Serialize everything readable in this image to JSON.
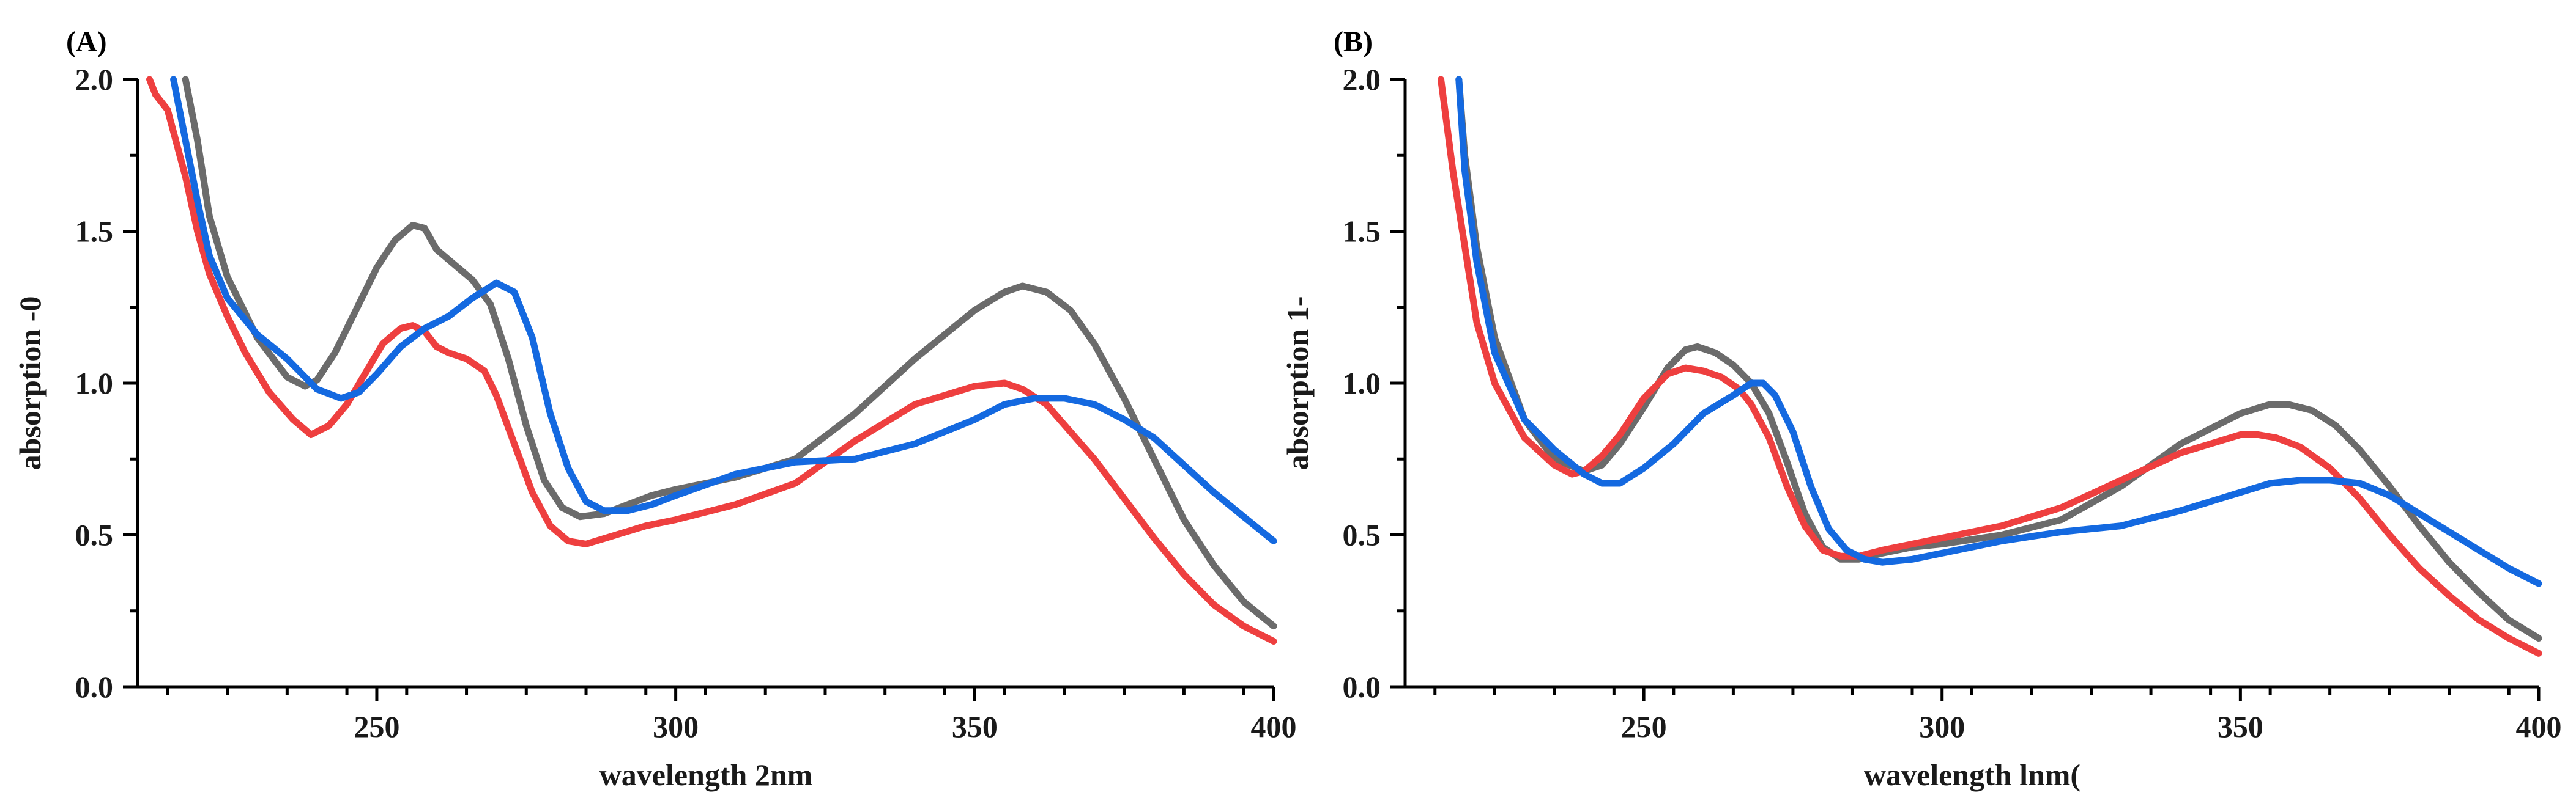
{
  "chart_data": [
    {
      "type": "line",
      "panel_label": "(A)",
      "xlabel": "wavelength ​2nm",
      "ylabel": "absorption ​-0",
      "xlim": [
        210,
        400
      ],
      "ylim": [
        0,
        2
      ],
      "xticks": [
        250,
        300,
        350,
        400
      ],
      "xtick_labels": [
        "250",
        "300",
        "350",
        "400"
      ],
      "yticks": [
        0,
        0.5,
        1,
        1.5,
        2
      ],
      "ytick_labels": [
        "0.0",
        "0.5",
        "1.0",
        "1.5",
        "2.0"
      ],
      "series": [
        {
          "name": "gray",
          "color": "#6b6b6b",
          "x": [
            218,
            220,
            222,
            225,
            230,
            235,
            238,
            240,
            243,
            246,
            250,
            253,
            256,
            258,
            260,
            263,
            266,
            269,
            272,
            275,
            278,
            281,
            284,
            288,
            292,
            296,
            300,
            310,
            320,
            330,
            340,
            350,
            355,
            358,
            362,
            366,
            370,
            375,
            380,
            385,
            390,
            395,
            400
          ],
          "y": [
            2.0,
            1.8,
            1.55,
            1.35,
            1.15,
            1.02,
            0.99,
            1.01,
            1.1,
            1.22,
            1.38,
            1.47,
            1.52,
            1.51,
            1.44,
            1.39,
            1.34,
            1.26,
            1.08,
            0.86,
            0.68,
            0.59,
            0.56,
            0.57,
            0.6,
            0.63,
            0.65,
            0.69,
            0.75,
            0.9,
            1.08,
            1.24,
            1.3,
            1.32,
            1.3,
            1.24,
            1.13,
            0.95,
            0.75,
            0.55,
            0.4,
            0.28,
            0.2
          ]
        },
        {
          "name": "red",
          "color": "#ee3f3f",
          "x": [
            212,
            213,
            215,
            218,
            220,
            222,
            225,
            228,
            232,
            236,
            239,
            242,
            245,
            248,
            251,
            254,
            256,
            258,
            260,
            262,
            265,
            268,
            270,
            273,
            276,
            279,
            282,
            285,
            290,
            295,
            300,
            310,
            320,
            330,
            340,
            350,
            355,
            358,
            362,
            366,
            370,
            375,
            380,
            385,
            390,
            395,
            400
          ],
          "y": [
            2.0,
            1.95,
            1.9,
            1.68,
            1.5,
            1.36,
            1.22,
            1.1,
            0.97,
            0.88,
            0.83,
            0.86,
            0.93,
            1.03,
            1.13,
            1.18,
            1.19,
            1.17,
            1.12,
            1.1,
            1.08,
            1.04,
            0.96,
            0.8,
            0.64,
            0.53,
            0.48,
            0.47,
            0.5,
            0.53,
            0.55,
            0.6,
            0.67,
            0.81,
            0.93,
            0.99,
            1.0,
            0.98,
            0.93,
            0.84,
            0.75,
            0.62,
            0.49,
            0.37,
            0.27,
            0.2,
            0.15
          ]
        },
        {
          "name": "blue",
          "color": "#1469e0",
          "x": [
            216,
            218,
            220,
            222,
            225,
            230,
            235,
            240,
            244,
            247,
            250,
            254,
            258,
            262,
            266,
            270,
            273,
            276,
            279,
            282,
            285,
            288,
            292,
            296,
            300,
            310,
            320,
            330,
            340,
            350,
            355,
            360,
            365,
            370,
            375,
            380,
            385,
            390,
            395,
            400
          ],
          "y": [
            2.0,
            1.8,
            1.6,
            1.42,
            1.28,
            1.16,
            1.08,
            0.98,
            0.95,
            0.97,
            1.03,
            1.12,
            1.18,
            1.22,
            1.28,
            1.33,
            1.3,
            1.15,
            0.9,
            0.72,
            0.61,
            0.58,
            0.58,
            0.6,
            0.63,
            0.7,
            0.74,
            0.75,
            0.8,
            0.88,
            0.93,
            0.95,
            0.95,
            0.93,
            0.88,
            0.82,
            0.73,
            0.64,
            0.56,
            0.48
          ]
        }
      ]
    },
    {
      "type": "line",
      "panel_label": "(B)",
      "xlabel": "wavelength ​lnm(",
      "ylabel": "absorption ​1-",
      "xlim": [
        210,
        400
      ],
      "ylim": [
        0,
        2
      ],
      "xticks": [
        250,
        300,
        350,
        400
      ],
      "xtick_labels": [
        "250",
        "300",
        "350",
        "400"
      ],
      "yticks": [
        0,
        0.5,
        1,
        1.5,
        2
      ],
      "ytick_labels": [
        "0.0",
        "0.5",
        "1.0",
        "1.5",
        "2.0"
      ],
      "series": [
        {
          "name": "gray",
          "color": "#6b6b6b",
          "x": [
            219,
            220,
            222,
            225,
            230,
            235,
            240,
            243,
            246,
            250,
            254,
            257,
            259,
            262,
            265,
            268,
            271,
            274,
            277,
            280,
            283,
            286,
            290,
            295,
            300,
            310,
            320,
            330,
            340,
            350,
            355,
            358,
            362,
            366,
            370,
            375,
            380,
            385,
            390,
            395,
            400
          ],
          "y": [
            2.0,
            1.75,
            1.45,
            1.15,
            0.88,
            0.75,
            0.71,
            0.73,
            0.8,
            0.92,
            1.05,
            1.11,
            1.12,
            1.1,
            1.06,
            1.0,
            0.9,
            0.74,
            0.57,
            0.46,
            0.42,
            0.42,
            0.44,
            0.46,
            0.47,
            0.5,
            0.55,
            0.66,
            0.8,
            0.9,
            0.93,
            0.93,
            0.91,
            0.86,
            0.78,
            0.66,
            0.53,
            0.41,
            0.31,
            0.22,
            0.16
          ]
        },
        {
          "name": "red",
          "color": "#ee3f3f",
          "x": [
            216,
            218,
            220,
            222,
            225,
            230,
            235,
            238,
            240,
            243,
            246,
            250,
            254,
            257,
            260,
            263,
            266,
            268,
            271,
            274,
            277,
            280,
            283,
            286,
            290,
            295,
            300,
            310,
            320,
            330,
            340,
            350,
            353,
            356,
            360,
            365,
            370,
            375,
            380,
            385,
            390,
            395,
            400
          ],
          "y": [
            2.0,
            1.7,
            1.45,
            1.2,
            1.0,
            0.82,
            0.73,
            0.7,
            0.71,
            0.76,
            0.83,
            0.95,
            1.03,
            1.05,
            1.04,
            1.02,
            0.98,
            0.93,
            0.82,
            0.66,
            0.53,
            0.45,
            0.43,
            0.43,
            0.45,
            0.47,
            0.49,
            0.53,
            0.59,
            0.68,
            0.77,
            0.83,
            0.83,
            0.82,
            0.79,
            0.72,
            0.62,
            0.5,
            0.39,
            0.3,
            0.22,
            0.16,
            0.11
          ]
        },
        {
          "name": "blue",
          "color": "#1469e0",
          "x": [
            219,
            220,
            222,
            225,
            230,
            235,
            240,
            243,
            246,
            250,
            255,
            260,
            265,
            268,
            270,
            272,
            275,
            278,
            281,
            284,
            287,
            290,
            295,
            300,
            310,
            320,
            330,
            340,
            350,
            355,
            360,
            365,
            370,
            375,
            380,
            385,
            390,
            395,
            400
          ],
          "y": [
            2.0,
            1.7,
            1.4,
            1.1,
            0.88,
            0.78,
            0.7,
            0.67,
            0.67,
            0.72,
            0.8,
            0.9,
            0.96,
            1.0,
            1.0,
            0.96,
            0.84,
            0.66,
            0.52,
            0.45,
            0.42,
            0.41,
            0.42,
            0.44,
            0.48,
            0.51,
            0.53,
            0.58,
            0.64,
            0.67,
            0.68,
            0.68,
            0.67,
            0.63,
            0.57,
            0.51,
            0.45,
            0.39,
            0.34
          ]
        }
      ]
    }
  ]
}
